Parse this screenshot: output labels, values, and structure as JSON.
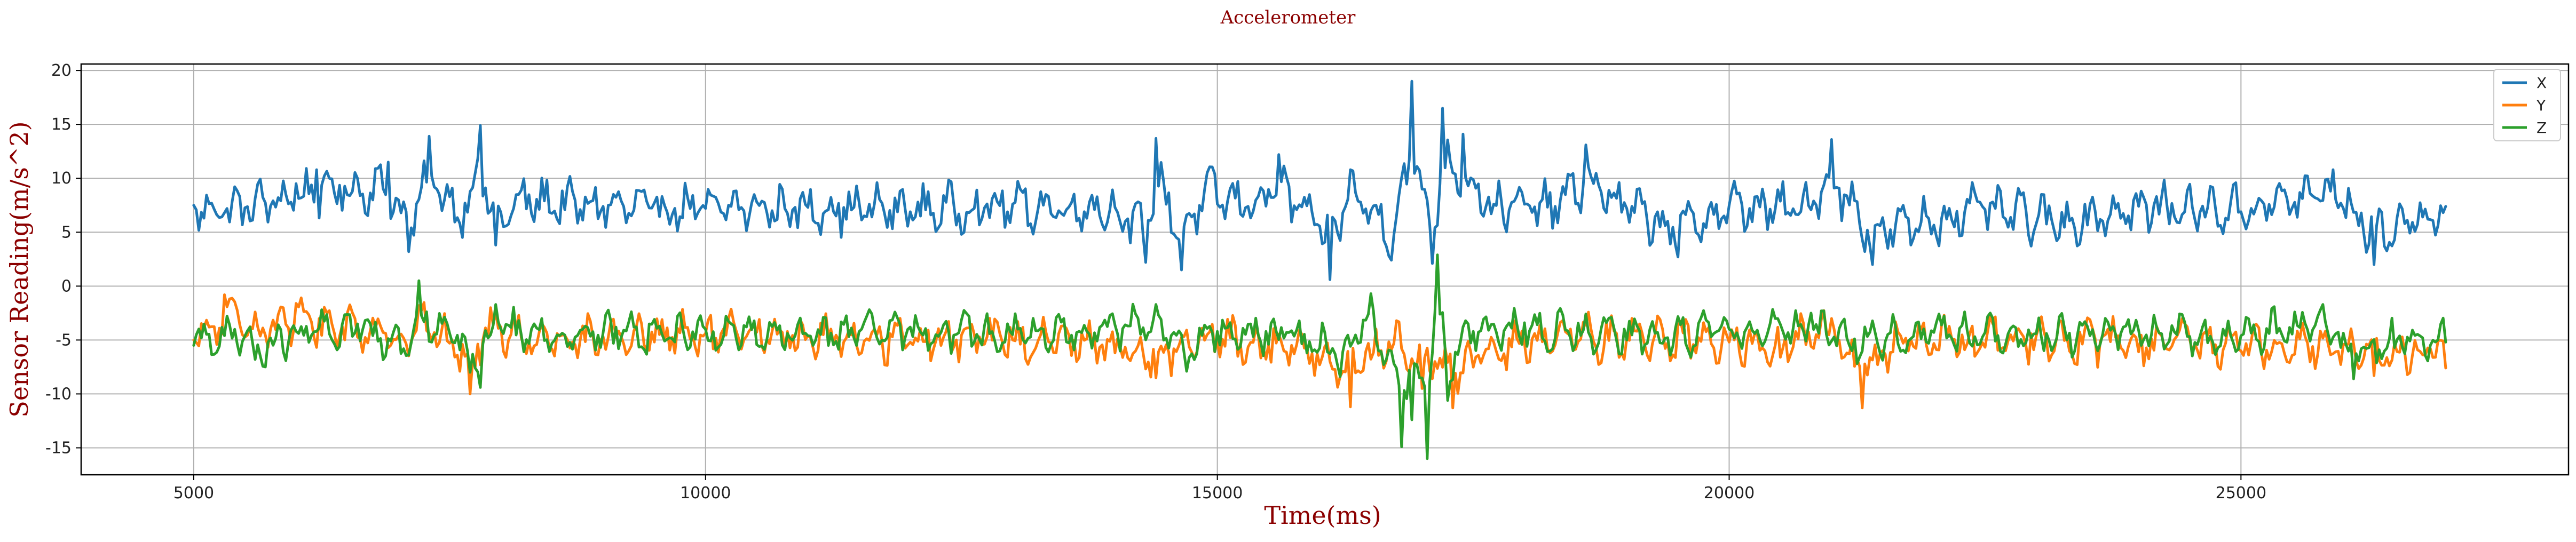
{
  "chart_data": {
    "type": "line",
    "title": "Accelerometer",
    "xlabel": "Time(ms)",
    "ylabel": "Sensor Reading(m/s^2)",
    "xlim": [
      3900,
      28200
    ],
    "ylim": [
      -17.5,
      20.6
    ],
    "x_ticks": [
      5000,
      10000,
      15000,
      20000,
      25000
    ],
    "y_ticks": [
      -15,
      -10,
      -5,
      0,
      5,
      10,
      15,
      20
    ],
    "grid": true,
    "legend_position": "top-right",
    "x_range": [
      5000,
      27000
    ],
    "series": [
      {
        "name": "X",
        "color": "#1f77b4",
        "baseline": 7.2,
        "noise": 1.6,
        "points": [
          [
            5000,
            7.5
          ],
          [
            5300,
            6.8
          ],
          [
            6000,
            9.5
          ],
          [
            6200,
            10.8
          ],
          [
            6900,
            11.5
          ],
          [
            7100,
            3.2
          ],
          [
            7300,
            13.9
          ],
          [
            7600,
            5.8
          ],
          [
            7800,
            14.9
          ],
          [
            7950,
            3.8
          ],
          [
            8200,
            8.9
          ],
          [
            9000,
            7.4
          ],
          [
            10000,
            7.2
          ],
          [
            11000,
            7.3
          ],
          [
            12000,
            6.9
          ],
          [
            13000,
            7.6
          ],
          [
            14000,
            7.3
          ],
          [
            14300,
            2.2
          ],
          [
            14400,
            13.7
          ],
          [
            14650,
            1.5
          ],
          [
            14900,
            10.5
          ],
          [
            15300,
            7.4
          ],
          [
            15600,
            12.2
          ],
          [
            16100,
            0.6
          ],
          [
            16300,
            10.8
          ],
          [
            16700,
            2.4
          ],
          [
            16900,
            19.0
          ],
          [
            17100,
            2.1
          ],
          [
            17200,
            16.5
          ],
          [
            17400,
            14.1
          ],
          [
            17700,
            7.6
          ],
          [
            18300,
            7.4
          ],
          [
            18600,
            13.1
          ],
          [
            19000,
            7.2
          ],
          [
            19500,
            2.7
          ],
          [
            20000,
            7.5
          ],
          [
            20700,
            6.9
          ],
          [
            21000,
            13.6
          ],
          [
            21400,
            2.0
          ],
          [
            22500,
            7.1
          ],
          [
            23200,
            4.2
          ],
          [
            24000,
            7.4
          ],
          [
            25000,
            6.9
          ],
          [
            25900,
            10.8
          ],
          [
            26300,
            2.0
          ],
          [
            27000,
            7.4
          ]
        ]
      },
      {
        "name": "Y",
        "color": "#ff7f0e",
        "baseline": -4.8,
        "noise": 1.5,
        "points": [
          [
            5000,
            -5.0
          ],
          [
            5150,
            -3.8
          ],
          [
            5300,
            -0.8
          ],
          [
            5600,
            -2.4
          ],
          [
            6000,
            -1.6
          ],
          [
            6500,
            -2.5
          ],
          [
            7000,
            -4.6
          ],
          [
            7200,
            -1.8
          ],
          [
            7500,
            -5.3
          ],
          [
            7600,
            -7.9
          ],
          [
            7700,
            -10.0
          ],
          [
            7900,
            -2.0
          ],
          [
            8200,
            -4.8
          ],
          [
            9000,
            -4.7
          ],
          [
            10000,
            -4.4
          ],
          [
            11000,
            -4.6
          ],
          [
            12000,
            -5.2
          ],
          [
            13000,
            -5.0
          ],
          [
            14000,
            -6.2
          ],
          [
            14400,
            -8.5
          ],
          [
            15000,
            -5.1
          ],
          [
            16000,
            -7.3
          ],
          [
            16300,
            -11.2
          ],
          [
            16700,
            -5.9
          ],
          [
            17000,
            -9.5
          ],
          [
            17300,
            -11.3
          ],
          [
            18000,
            -5.3
          ],
          [
            19000,
            -4.8
          ],
          [
            20000,
            -5.2
          ],
          [
            20500,
            -6.6
          ],
          [
            21000,
            -3.0
          ],
          [
            21300,
            -11.3
          ],
          [
            21700,
            -5.3
          ],
          [
            22300,
            -5.9
          ],
          [
            23000,
            -4.6
          ],
          [
            24000,
            -6.1
          ],
          [
            25000,
            -6.0
          ],
          [
            25700,
            -5.6
          ],
          [
            26300,
            -8.3
          ],
          [
            27000,
            -7.6
          ]
        ]
      },
      {
        "name": "Z",
        "color": "#2ca02c",
        "baseline": -4.5,
        "noise": 1.3,
        "points": [
          [
            5000,
            -5.5
          ],
          [
            5300,
            -4.6
          ],
          [
            5600,
            -6.8
          ],
          [
            5700,
            -7.5
          ],
          [
            6000,
            -4.2
          ],
          [
            6600,
            -3.5
          ],
          [
            7100,
            -6.4
          ],
          [
            7200,
            0.5
          ],
          [
            7700,
            -8.0
          ],
          [
            7800,
            -9.4
          ],
          [
            7950,
            -1.7
          ],
          [
            8200,
            -4.5
          ],
          [
            9000,
            -4.3
          ],
          [
            10000,
            -4.0
          ],
          [
            11000,
            -4.6
          ],
          [
            12000,
            -3.8
          ],
          [
            13000,
            -4.5
          ],
          [
            14000,
            -3.6
          ],
          [
            14400,
            -1.7
          ],
          [
            14700,
            -7.9
          ],
          [
            15000,
            -4.2
          ],
          [
            15700,
            -4.3
          ],
          [
            16200,
            -8.4
          ],
          [
            16500,
            -0.7
          ],
          [
            16800,
            -14.9
          ],
          [
            16900,
            -12.4
          ],
          [
            17050,
            -16.0
          ],
          [
            17150,
            2.9
          ],
          [
            17250,
            -10.6
          ],
          [
            17500,
            -4.2
          ],
          [
            18000,
            -3.4
          ],
          [
            19000,
            -5.0
          ],
          [
            20000,
            -4.0
          ],
          [
            20800,
            -2.5
          ],
          [
            21200,
            -6.0
          ],
          [
            22000,
            -4.3
          ],
          [
            23000,
            -4.4
          ],
          [
            24000,
            -4.1
          ],
          [
            25000,
            -4.6
          ],
          [
            25800,
            -1.7
          ],
          [
            26100,
            -8.6
          ],
          [
            26500,
            -5.7
          ],
          [
            27000,
            -5.2
          ]
        ]
      }
    ]
  }
}
